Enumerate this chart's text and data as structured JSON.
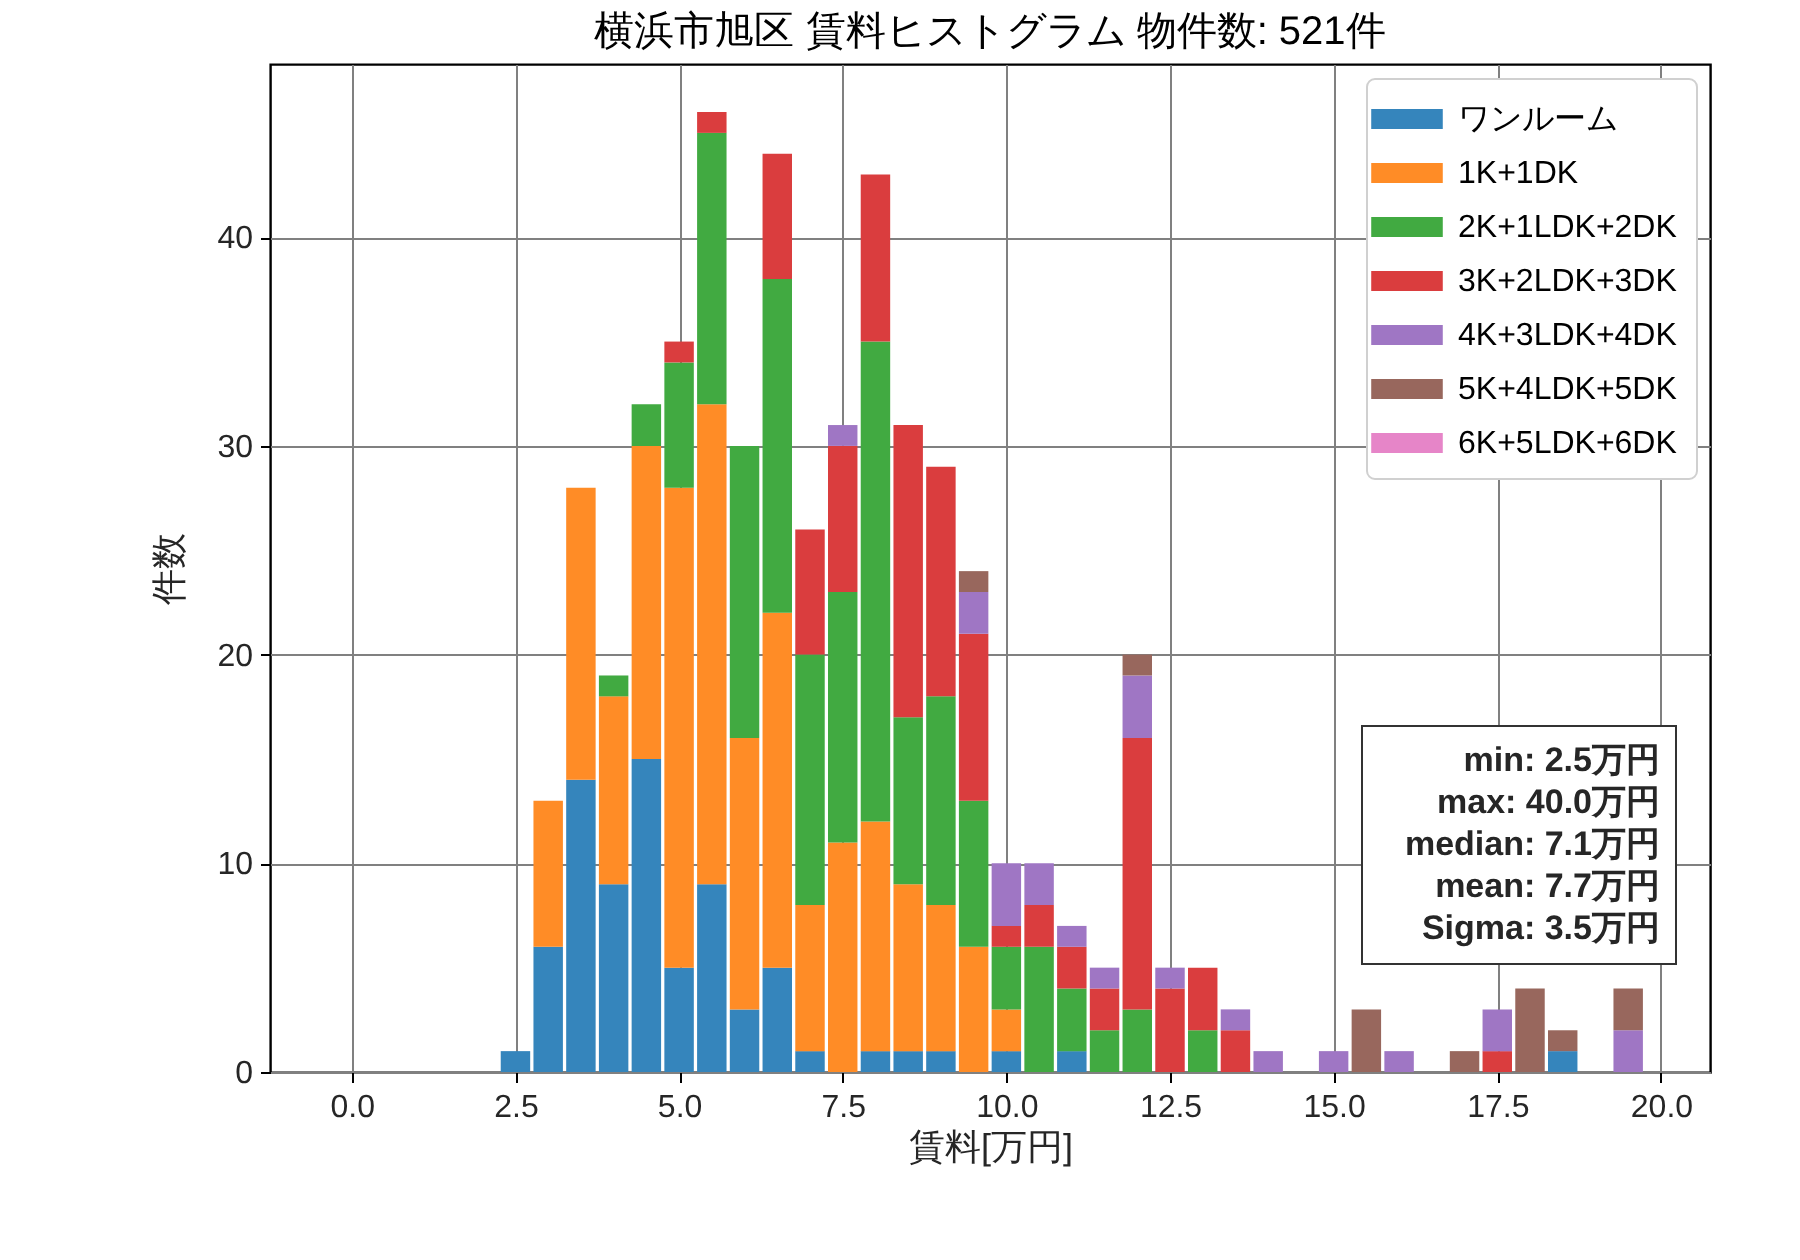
{
  "chart_data": {
    "type": "bar",
    "title": "横浜市旭区 賃料ヒストグラム 物件数: 521件",
    "xlabel": "賃料[万円]",
    "ylabel": "件数",
    "x": [
      2.5,
      3.0,
      3.5,
      4.0,
      4.5,
      5.0,
      5.5,
      6.0,
      6.5,
      7.0,
      7.5,
      8.0,
      8.5,
      9.0,
      9.5,
      10.0,
      10.5,
      11.0,
      11.5,
      12.0,
      12.5,
      13.0,
      13.5,
      14.0,
      14.5,
      15.0,
      15.5,
      16.0,
      16.5,
      17.0,
      17.5,
      18.0,
      18.5,
      19.0,
      19.5
    ],
    "stacked": true,
    "series": [
      {
        "name": "ワンルーム",
        "color": "#3585bc",
        "values": [
          1,
          6,
          14,
          9,
          15,
          5,
          9,
          3,
          5,
          1,
          null,
          1,
          1,
          1,
          null,
          1,
          null,
          1,
          null,
          null,
          null,
          null,
          null,
          null,
          null,
          null,
          null,
          null,
          null,
          null,
          null,
          null,
          1,
          null,
          null
        ]
      },
      {
        "name": "1K+1DK",
        "color": "#ff8c26",
        "values": [
          null,
          7,
          14,
          9,
          15,
          23,
          23,
          13,
          17,
          7,
          11,
          11,
          8,
          7,
          6,
          2,
          null,
          null,
          null,
          null,
          null,
          null,
          null,
          null,
          null,
          null,
          null,
          null,
          null,
          null,
          null,
          null,
          null,
          null,
          null
        ]
      },
      {
        "name": "2K+1LDK+2DK",
        "color": "#41aa41",
        "values": [
          null,
          null,
          null,
          1,
          2,
          6,
          13,
          14,
          16,
          12,
          12,
          23,
          8,
          10,
          7,
          3,
          6,
          3,
          2,
          3,
          null,
          2,
          null,
          null,
          null,
          null,
          null,
          null,
          null,
          null,
          null,
          null,
          null,
          null,
          null
        ]
      },
      {
        "name": "3K+2LDK+3DK",
        "color": "#da3d3e",
        "values": [
          null,
          null,
          null,
          null,
          null,
          1,
          1,
          null,
          6,
          6,
          7,
          8,
          14,
          11,
          8,
          1,
          2,
          2,
          2,
          13,
          4,
          3,
          2,
          null,
          null,
          null,
          null,
          null,
          null,
          null,
          1,
          null,
          null,
          null,
          null
        ]
      },
      {
        "name": "4K+3LDK+4DK",
        "color": "#9f76c4",
        "values": [
          null,
          null,
          null,
          null,
          null,
          null,
          null,
          null,
          null,
          null,
          1,
          null,
          null,
          null,
          2,
          3,
          2,
          1,
          1,
          3,
          1,
          null,
          1,
          1,
          null,
          1,
          null,
          1,
          null,
          null,
          2,
          null,
          null,
          null,
          2
        ]
      },
      {
        "name": "5K+4LDK+5DK",
        "color": "#98675d",
        "values": [
          null,
          null,
          null,
          null,
          null,
          null,
          null,
          null,
          null,
          null,
          null,
          null,
          null,
          null,
          1,
          null,
          null,
          null,
          null,
          1,
          null,
          null,
          null,
          null,
          null,
          null,
          3,
          null,
          null,
          1,
          null,
          4,
          1,
          null,
          2
        ]
      },
      {
        "name": "6K+5LDK+6DK",
        "color": "#e685c8",
        "values": [
          null,
          null,
          null,
          null,
          null,
          null,
          null,
          null,
          null,
          null,
          null,
          null,
          null,
          null,
          null,
          null,
          null,
          null,
          null,
          null,
          null,
          null,
          null,
          null,
          null,
          null,
          null,
          null,
          null,
          null,
          null,
          null,
          null,
          null,
          null
        ]
      }
    ],
    "xlim": [
      -1.25,
      20.75
    ],
    "ylim": [
      0,
      48.3
    ],
    "xticks": [
      {
        "value": 0,
        "label": "0.0"
      },
      {
        "value": 2.5,
        "label": "2.5"
      },
      {
        "value": 5,
        "label": "5.0"
      },
      {
        "value": 7.5,
        "label": "7.5"
      },
      {
        "value": 10,
        "label": "10.0"
      },
      {
        "value": 12.5,
        "label": "12.5"
      },
      {
        "value": 15,
        "label": "15.0"
      },
      {
        "value": 17.5,
        "label": "17.5"
      },
      {
        "value": 20,
        "label": "20.0"
      }
    ],
    "yticks": [
      0,
      10,
      20,
      30,
      40
    ],
    "grid": true,
    "legend": "top right",
    "annotations": [
      "min: 2.5万円",
      "max: 40.0万円",
      "median: 7.1万円",
      "mean: 7.7万円",
      "Sigma: 3.5万円"
    ]
  }
}
